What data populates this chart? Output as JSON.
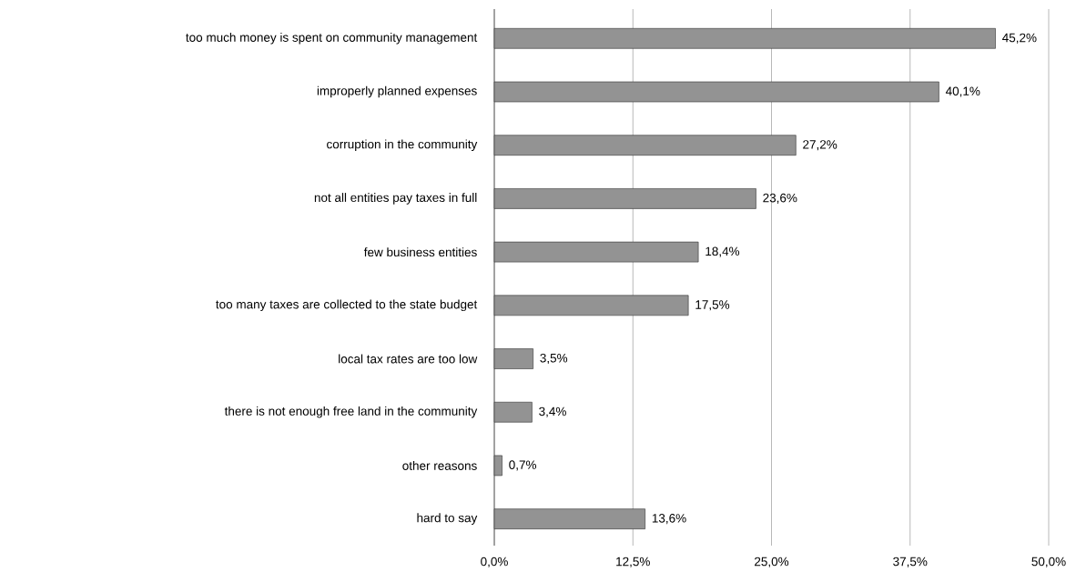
{
  "chart_data": {
    "type": "bar",
    "orientation": "horizontal",
    "categories": [
      "too much money is spent on community management",
      "improperly planned expenses",
      "corruption in the community",
      "not all entities pay taxes in full",
      "few business entities",
      "too many taxes are collected to the state budget",
      "local tax rates are too low",
      "there is not enough free land in the community",
      "other reasons",
      "hard to say"
    ],
    "values": [
      45.2,
      40.1,
      27.2,
      23.6,
      18.4,
      17.5,
      3.5,
      3.4,
      0.7,
      13.6
    ],
    "value_labels": [
      "45,2%",
      "40,1%",
      "27,2%",
      "23,6%",
      "18,4%",
      "17,5%",
      "3,5%",
      "3,4%",
      "0,7%",
      "13,6%"
    ],
    "color": "#939393",
    "xlim": [
      0,
      50
    ],
    "xticks": [
      {
        "value": 0,
        "label": "0,0%"
      },
      {
        "value": 12.5,
        "label": "12,5%"
      },
      {
        "value": 25,
        "label": "25,0%"
      },
      {
        "value": 37.5,
        "label": "37,5%"
      },
      {
        "value": 50,
        "label": "50,0%"
      }
    ],
    "grid": "x"
  }
}
